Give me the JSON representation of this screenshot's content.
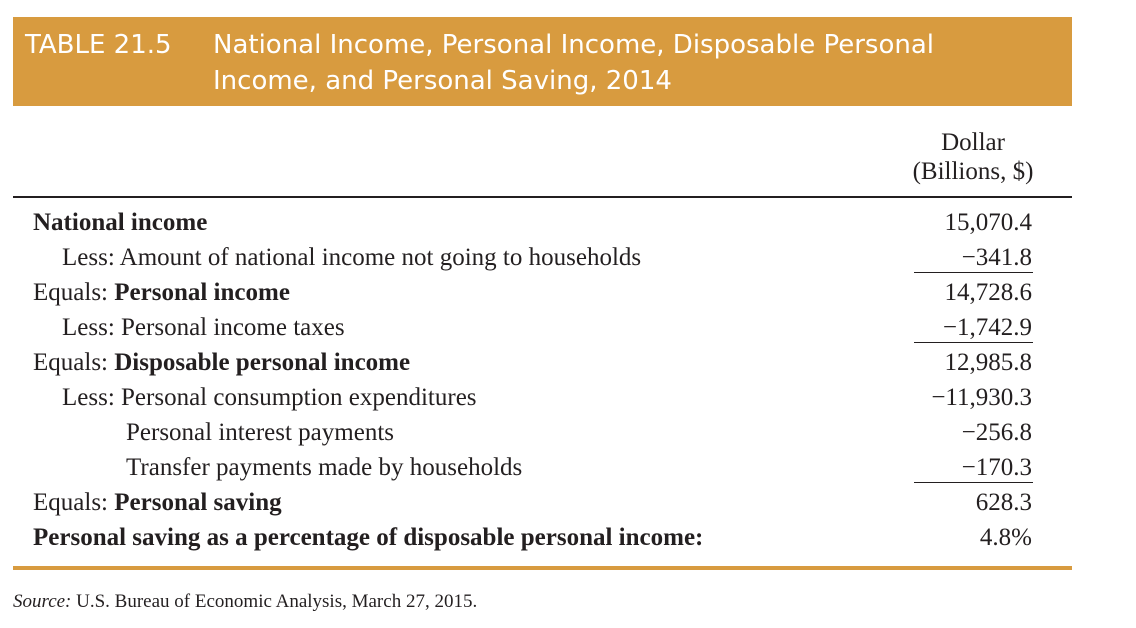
{
  "header": {
    "label": "TABLE 21.5",
    "title_line1": "National Income, Personal Income, Disposable Personal",
    "title_line2": "Income, and Personal Saving, 2014"
  },
  "column": {
    "line1": "Dollar",
    "line2": "(Billions, $)"
  },
  "rows": [
    {
      "prefix": "",
      "label": "National income",
      "value": "15,070.4"
    },
    {
      "prefix": "",
      "label": "Less: Amount of national income not going to households",
      "value": "−341.8"
    },
    {
      "prefix": "Equals: ",
      "label": "Personal income",
      "value": "14,728.6"
    },
    {
      "prefix": "",
      "label": "Less: Personal income taxes",
      "value": "−1,742.9"
    },
    {
      "prefix": "Equals: ",
      "label": "Disposable personal income",
      "value": "12,985.8"
    },
    {
      "prefix": "",
      "label": "Less: Personal consumption expenditures",
      "value": "−11,930.3"
    },
    {
      "prefix": "",
      "label": "Personal interest payments",
      "value": "−256.8"
    },
    {
      "prefix": "",
      "label": "Transfer payments made by households",
      "value": "−170.3"
    },
    {
      "prefix": "Equals: ",
      "label": "Personal saving",
      "value": "628.3"
    },
    {
      "prefix": "",
      "label": "Personal saving as a percentage of disposable personal income:",
      "value": "4.8%"
    }
  ],
  "source": {
    "label": "Source:",
    "text": " U.S. Bureau of Economic Analysis, March 27, 2015."
  }
}
